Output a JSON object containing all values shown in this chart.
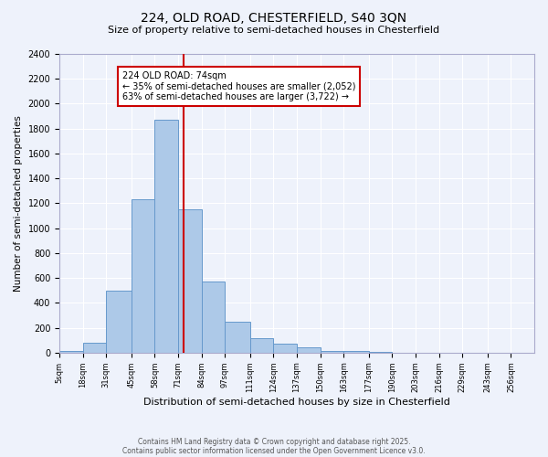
{
  "title1": "224, OLD ROAD, CHESTERFIELD, S40 3QN",
  "title2": "Size of property relative to semi-detached houses in Chesterfield",
  "xlabel": "Distribution of semi-detached houses by size in Chesterfield",
  "ylabel": "Number of semi-detached properties",
  "bins": [
    5,
    18,
    31,
    45,
    58,
    71,
    84,
    97,
    111,
    124,
    137,
    150,
    163,
    177,
    190,
    203,
    216,
    229,
    243,
    256,
    269
  ],
  "values": [
    10,
    80,
    500,
    1230,
    1870,
    1150,
    575,
    245,
    115,
    75,
    45,
    15,
    10,
    5,
    0,
    0,
    0,
    0,
    0,
    0
  ],
  "bar_color": "#adc9e8",
  "bar_edge_color": "#6699cc",
  "property_size": 74,
  "marker_line_color": "#cc0000",
  "annotation_text": "224 OLD ROAD: 74sqm\n← 35% of semi-detached houses are smaller (2,052)\n63% of semi-detached houses are larger (3,722) →",
  "annotation_box_color": "#ffffff",
  "annotation_box_edge": "#cc0000",
  "ylim": [
    0,
    2400
  ],
  "yticks": [
    0,
    200,
    400,
    600,
    800,
    1000,
    1200,
    1400,
    1600,
    1800,
    2000,
    2200,
    2400
  ],
  "footnote1": "Contains HM Land Registry data © Crown copyright and database right 2025.",
  "footnote2": "Contains public sector information licensed under the Open Government Licence v3.0.",
  "bg_color": "#eef2fb",
  "grid_color": "#ffffff"
}
